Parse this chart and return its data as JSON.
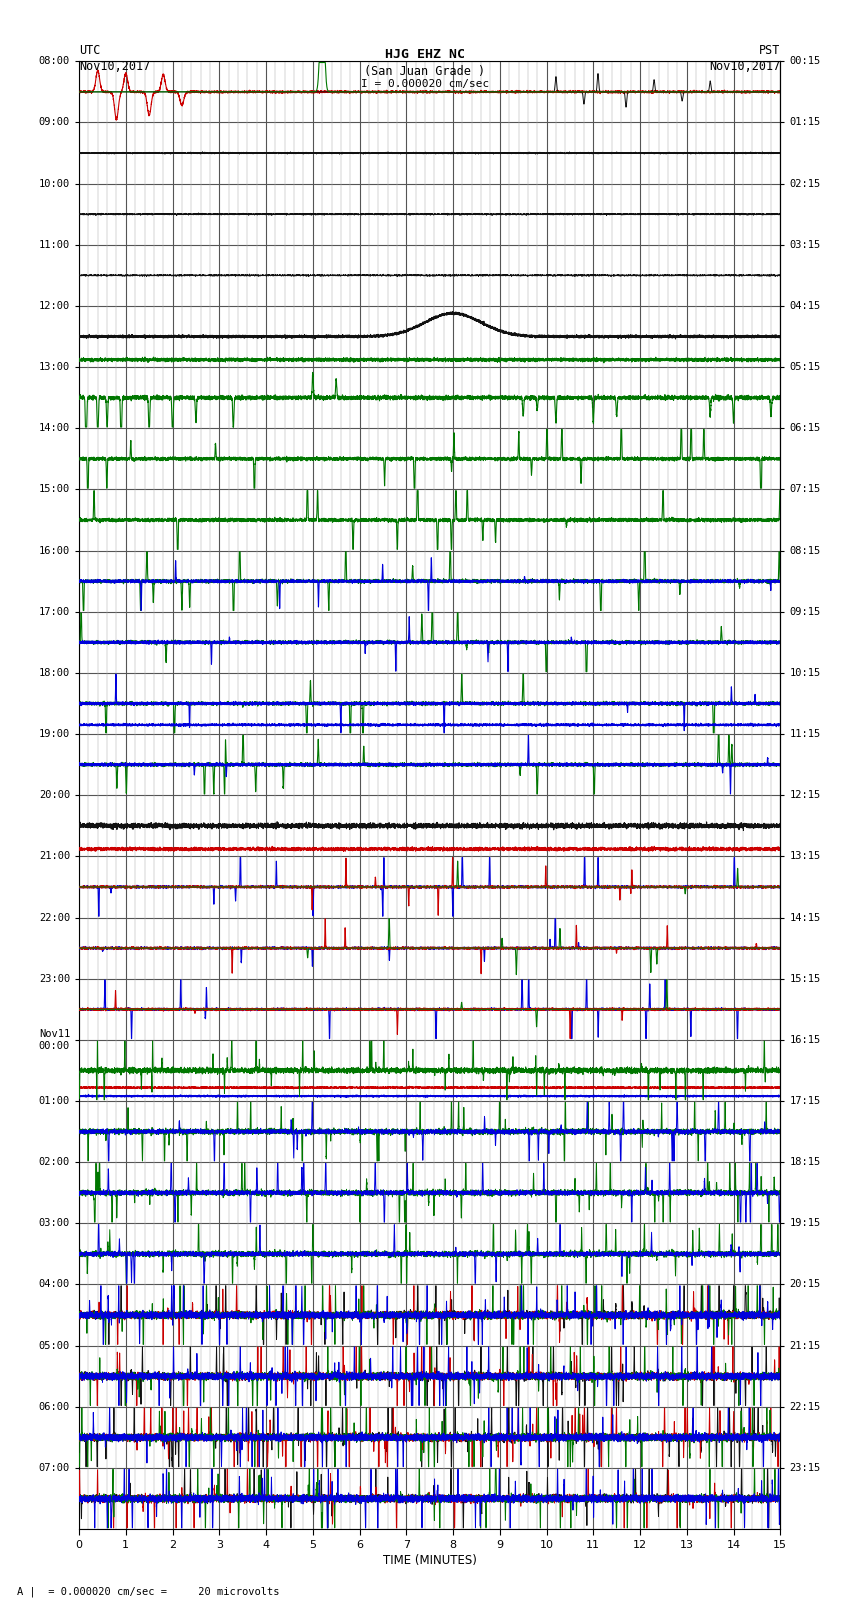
{
  "title_line1": "HJG EHZ NC",
  "title_line2": "(San Juan Grade )",
  "scale_label": "I = 0.000020 cm/sec",
  "left_label_line1": "UTC",
  "left_label_line2": "Nov10,2017",
  "right_label_line1": "PST",
  "right_label_line2": "Nov10,2017",
  "bottom_label": "A |  = 0.000020 cm/sec =     20 microvolts",
  "xlabel": "TIME (MINUTES)",
  "utc_times": [
    "08:00",
    "09:00",
    "10:00",
    "11:00",
    "12:00",
    "13:00",
    "14:00",
    "15:00",
    "16:00",
    "17:00",
    "18:00",
    "19:00",
    "20:00",
    "21:00",
    "22:00",
    "23:00",
    "Nov11\n00:00",
    "01:00",
    "02:00",
    "03:00",
    "04:00",
    "05:00",
    "06:00",
    "07:00"
  ],
  "pst_times": [
    "00:15",
    "01:15",
    "02:15",
    "03:15",
    "04:15",
    "05:15",
    "06:15",
    "07:15",
    "08:15",
    "09:15",
    "10:15",
    "11:15",
    "12:15",
    "13:15",
    "14:15",
    "15:15",
    "16:15",
    "17:15",
    "18:15",
    "19:15",
    "20:15",
    "21:15",
    "22:15",
    "23:15"
  ],
  "n_rows": 24,
  "minutes": 15,
  "bg_color": "#ffffff",
  "grid_major_color": "#555555",
  "grid_minor_color": "#aaaaaa",
  "color_green": "#007700",
  "color_blue": "#0000dd",
  "color_red": "#cc0000",
  "color_black": "#111111"
}
